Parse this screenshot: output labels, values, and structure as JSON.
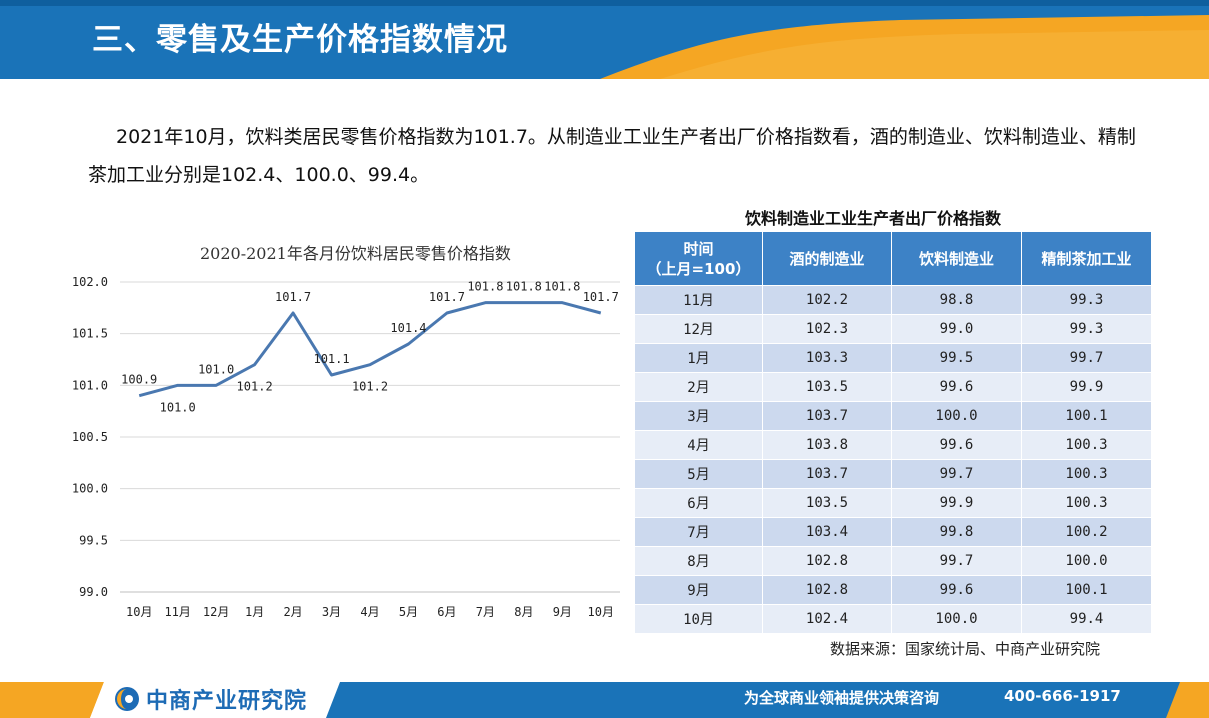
{
  "header": {
    "title": "三、零售及生产价格指数情况",
    "colors": {
      "primary": "#1a73b8",
      "accent": "#f5a623"
    }
  },
  "intro": {
    "text": "2021年10月，饮料类居民零售价格指数为101.7。从制造业工业生产者出厂价格指数看，酒的制造业、饮料制造业、精制茶加工业分别是102.4、100.0、99.4。"
  },
  "chart_data": {
    "type": "line",
    "title": "2020-2021年各月份饮料居民零售价格指数",
    "categories": [
      "10月",
      "11月",
      "12月",
      "1月",
      "2月",
      "3月",
      "4月",
      "5月",
      "6月",
      "7月",
      "8月",
      "9月",
      "10月"
    ],
    "series": [
      {
        "values": [
          100.9,
          101.0,
          101.0,
          101.2,
          101.7,
          101.1,
          101.2,
          101.4,
          101.7,
          101.8,
          101.8,
          101.8,
          101.7
        ]
      }
    ],
    "data_labels": [
      "100.9",
      "101.0",
      "101.0",
      "101.2",
      "101.7",
      "101.1",
      "101.2",
      "101.4",
      "101.7",
      "101.8",
      "101.8",
      "101.8",
      "101.7"
    ],
    "y_ticks": [
      "99.0",
      "99.5",
      "100.0",
      "100.5",
      "101.0",
      "101.5",
      "102.0"
    ],
    "ylim": [
      99.0,
      102.0
    ],
    "grid": true,
    "line_color": "#4a78b0"
  },
  "table": {
    "title": "饮料制造业工业生产者出厂价格指数",
    "header_line1": "时间",
    "header_line2": "（上月=100）",
    "columns": [
      "酒的制造业",
      "饮料制造业",
      "精制茶加工业"
    ],
    "rows": [
      {
        "month": "11月",
        "c1": "102.2",
        "c2": "98.8",
        "c3": "99.3"
      },
      {
        "month": "12月",
        "c1": "102.3",
        "c2": "99.0",
        "c3": "99.3"
      },
      {
        "month": "1月",
        "c1": "103.3",
        "c2": "99.5",
        "c3": "99.7"
      },
      {
        "month": "2月",
        "c1": "103.5",
        "c2": "99.6",
        "c3": "99.9"
      },
      {
        "month": "3月",
        "c1": "103.7",
        "c2": "100.0",
        "c3": "100.1"
      },
      {
        "month": "4月",
        "c1": "103.8",
        "c2": "99.6",
        "c3": "100.3"
      },
      {
        "month": "5月",
        "c1": "103.7",
        "c2": "99.7",
        "c3": "100.3"
      },
      {
        "month": "6月",
        "c1": "103.5",
        "c2": "99.9",
        "c3": "100.3"
      },
      {
        "month": "7月",
        "c1": "103.4",
        "c2": "99.8",
        "c3": "100.2"
      },
      {
        "month": "8月",
        "c1": "102.8",
        "c2": "99.7",
        "c3": "100.0"
      },
      {
        "month": "9月",
        "c1": "102.8",
        "c2": "99.6",
        "c3": "100.1"
      },
      {
        "month": "10月",
        "c1": "102.4",
        "c2": "100.0",
        "c3": "99.4"
      }
    ],
    "source": "数据来源：国家统计局、中商产业研究院"
  },
  "footer": {
    "logo_icon": "company-logo-icon",
    "logo_name": "中商产业研究院",
    "slogan": "为全球商业领袖提供决策咨询",
    "phone": "400-666-1917"
  }
}
